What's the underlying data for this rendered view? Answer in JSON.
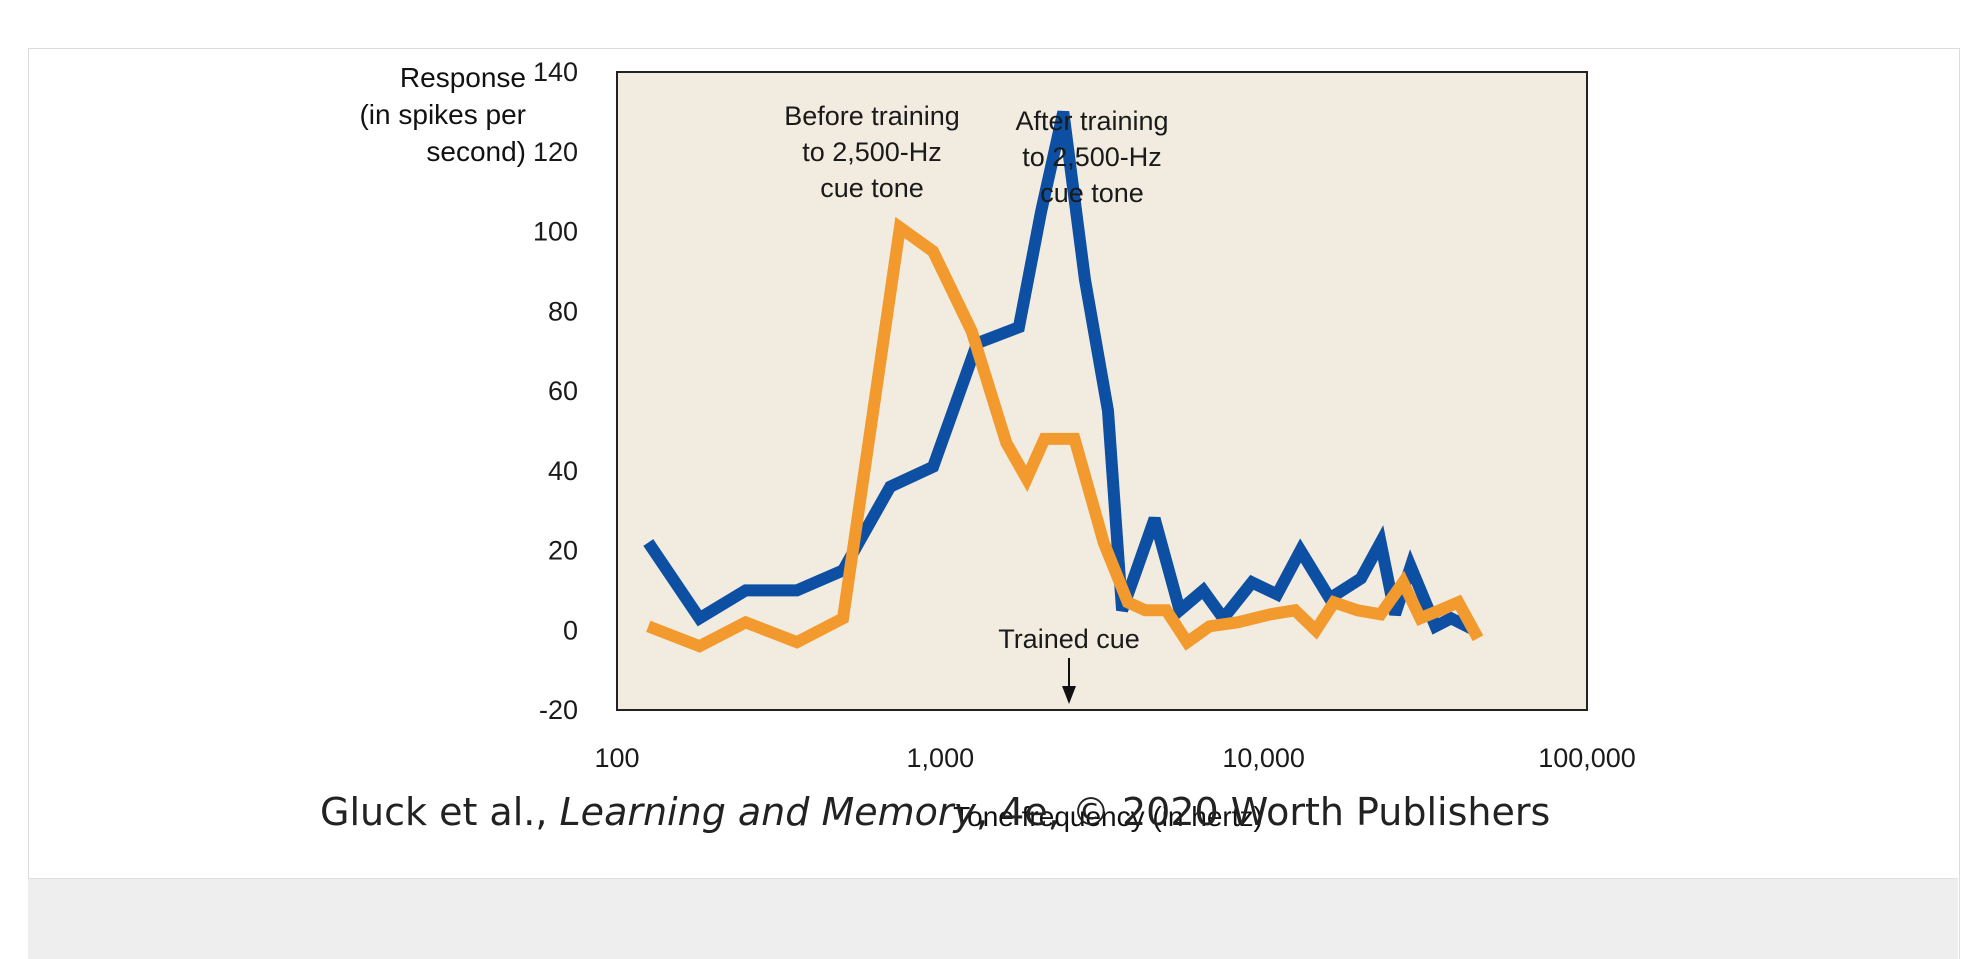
{
  "chart_data": {
    "type": "line",
    "xscale": "log",
    "xlim": [
      100,
      100000
    ],
    "ylim": [
      -20,
      140
    ],
    "xticks": [
      100,
      1000,
      10000,
      100000
    ],
    "xtick_labels": [
      "100",
      "1,000",
      "10,000",
      "100,000"
    ],
    "yticks": [
      -20,
      0,
      20,
      40,
      60,
      80,
      100,
      120,
      140
    ],
    "ylabel_lines": [
      "Response",
      "(in spikes per",
      "second)"
    ],
    "xlabel": "Tone frequency (in hertz)",
    "background": "#f2ece0",
    "series": [
      {
        "name": "After training to 2,500-Hz cue tone",
        "color": "#0d4fa3",
        "label_lines": [
          "After training",
          "to 2,500-Hz",
          "cue tone"
        ],
        "x": [
          125,
          180,
          250,
          360,
          500,
          700,
          950,
          1300,
          1750,
          2050,
          2400,
          2800,
          3300,
          3650,
          4000,
          4600,
          5500,
          6500,
          7500,
          9200,
          11000,
          13000,
          16000,
          20000,
          23000,
          25500,
          28500,
          34000,
          38000,
          45000
        ],
        "y": [
          22,
          3,
          10,
          10,
          15,
          36,
          41,
          72,
          76,
          105,
          130,
          88,
          55,
          5,
          14,
          28,
          5,
          10,
          3,
          12,
          9,
          20,
          8,
          13,
          22,
          4,
          16,
          1,
          3,
          0
        ]
      },
      {
        "name": "Before training to 2,500-Hz cue tone",
        "color": "#f39a2e",
        "label_lines": [
          "Before training",
          "to 2,500-Hz",
          "cue tone"
        ],
        "x": [
          125,
          180,
          250,
          360,
          500,
          750,
          950,
          1250,
          1600,
          1850,
          2100,
          2600,
          3200,
          3800,
          4300,
          5000,
          5800,
          6800,
          8300,
          10500,
          12500,
          14500,
          16500,
          19500,
          23000,
          27000,
          30500,
          35000,
          40000,
          46000
        ],
        "y": [
          1,
          -4,
          2,
          -3,
          3,
          101,
          95,
          75,
          47,
          38,
          48,
          48,
          22,
          7,
          5,
          5,
          -3,
          1,
          2,
          4,
          5,
          0,
          7,
          5,
          4,
          12,
          3,
          5,
          7,
          -2
        ]
      }
    ],
    "annotations": [
      {
        "text": "Trained cue",
        "x": 2500
      }
    ]
  },
  "credit": {
    "authors": "Gluck et al., ",
    "book": "Learning and Memory",
    "rest": ", 4e, © 2020 Worth Publishers"
  }
}
